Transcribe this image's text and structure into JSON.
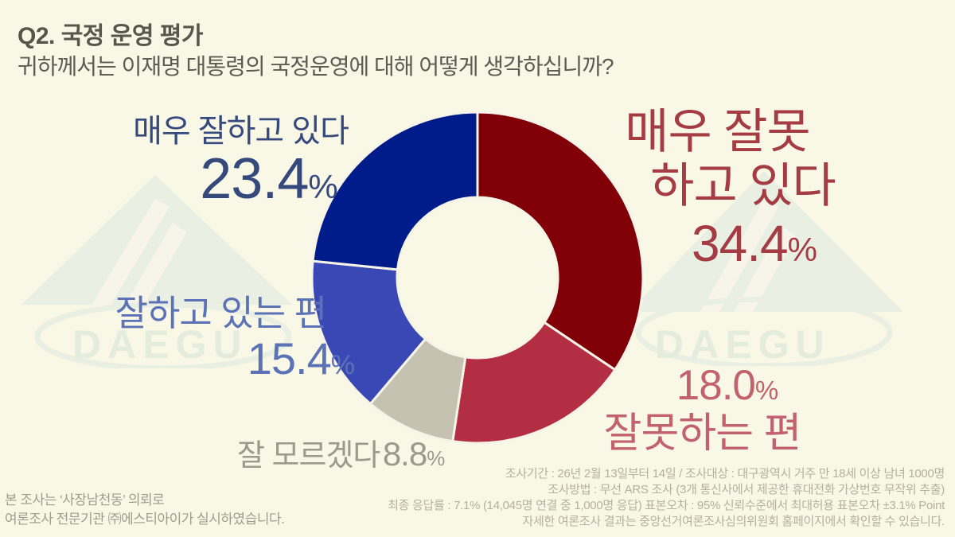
{
  "header": {
    "title": "Q2. 국정 운영 평가",
    "subtitle": "귀하께서는 이재명 대통령의 국정운영에 대해 어떻게 생각하십니까?"
  },
  "watermark": {
    "text": "DAEGU"
  },
  "chart_data": {
    "type": "pie",
    "subtype": "donut",
    "title": "Q2. 국정 운영 평가",
    "unit": "%",
    "start_angle_deg": 0,
    "direction": "clockwise",
    "total": 100,
    "legend": "none",
    "gap_color": "#f6f4e7",
    "segments": [
      {
        "key": "very_poor",
        "label": "매우 잘못하고 있다",
        "value": 34.4,
        "color": "#810008",
        "label_color": "#a53c44"
      },
      {
        "key": "rather_poor",
        "label": "잘못하는 편",
        "value": 18.0,
        "color": "#b42e43",
        "label_color": "#c2626e"
      },
      {
        "key": "dont_know",
        "label": "잘 모르겠다",
        "value": 8.8,
        "color": "#c6c2b2",
        "label_color": "#9c998d"
      },
      {
        "key": "fairly_well",
        "label": "잘하고 있는 편",
        "value": 15.4,
        "color": "#3a48b5",
        "label_color": "#5c72b6"
      },
      {
        "key": "very_well",
        "label": "매우 잘하고 있다",
        "value": 23.4,
        "color": "#001b8a",
        "label_color": "#36497c"
      }
    ]
  },
  "callouts": {
    "very_well": {
      "label": "매우 잘하고 있다",
      "value": "23.4",
      "unit": "%"
    },
    "very_poor": {
      "lines": [
        "매우 잘못",
        "하고 있다"
      ],
      "value": "34.4",
      "unit": "%"
    },
    "fairly_well": {
      "label": "잘하고 있는 편",
      "value": "15.4",
      "unit": "%"
    },
    "dont_know": {
      "label": "잘 모르겠다",
      "value": "8.8",
      "unit": "%"
    },
    "rather_poor": {
      "value": "18.0",
      "unit": "%",
      "label": "잘못하는 편"
    }
  },
  "footnote_right": {
    "lines": [
      "조사기간 : 26년 2월 13일부터 14일 / 조사대상 : 대구광역시 거주 만 18세 이상 남녀 1000명",
      "조사방법 : 무선 ARS 조사 (3개 통신사에서 제공한 휴대전화 가상번호 무작위 추출)",
      "최종 응답률 : 7.1% (14,045명 연결 중 1,000명 응답) 표본오차 : 95% 신뢰수준에서 최대허용 표본오차 ±3.1% Point",
      "자세한 여론조사 결과는 중앙선거여론조사심의위원회 홈페이지에서 확인할 수 있습니다."
    ]
  },
  "footnote_left": {
    "lines": [
      "본 조사는 ‘사장남천동’ 의뢰로",
      "여론조사 전문기관 ㈜에스티아이가 실시하였습니다."
    ]
  }
}
